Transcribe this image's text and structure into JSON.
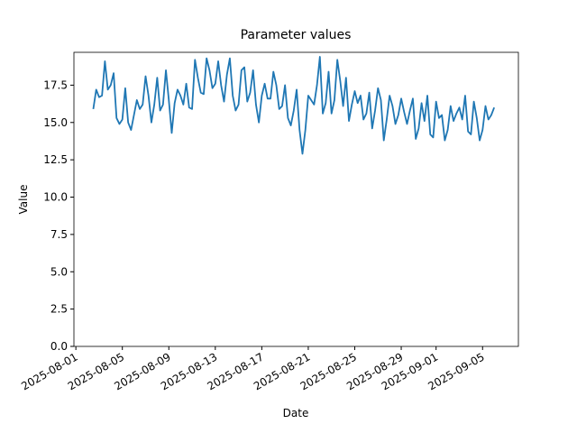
{
  "chart_data": {
    "type": "line",
    "title": "Parameter values",
    "x_label": "Date",
    "y_label": "Value",
    "xlim": [
      "2025-07-31 20:00",
      "2025-09-08 02:00"
    ],
    "xticks": [
      "2025-08-01",
      "2025-08-05",
      "2025-08-09",
      "2025-08-13",
      "2025-08-17",
      "2025-08-21",
      "2025-08-25",
      "2025-08-29",
      "2025-09-01",
      "2025-09-05"
    ],
    "ylim": [
      0,
      19.7
    ],
    "yticks": [
      {
        "value": 0,
        "label": "0.0"
      },
      {
        "value": 2.5,
        "label": "2.5"
      },
      {
        "value": 5,
        "label": "5.0"
      },
      {
        "value": 7.5,
        "label": "7.5"
      },
      {
        "value": 10,
        "label": "10.0"
      },
      {
        "value": 12.5,
        "label": "12.5"
      },
      {
        "value": 15,
        "label": "15.0"
      },
      {
        "value": 17.5,
        "label": "17.5"
      }
    ],
    "x": [
      "2025-08-02 12:00",
      "2025-08-02 18:00",
      "2025-08-03 00:00",
      "2025-08-03 06:00",
      "2025-08-03 12:00",
      "2025-08-03 18:00",
      "2025-08-04 00:00",
      "2025-08-04 06:00",
      "2025-08-04 12:00",
      "2025-08-04 18:00",
      "2025-08-05 00:00",
      "2025-08-05 06:00",
      "2025-08-05 12:00",
      "2025-08-05 18:00",
      "2025-08-06 00:00",
      "2025-08-06 06:00",
      "2025-08-06 12:00",
      "2025-08-06 18:00",
      "2025-08-07 00:00",
      "2025-08-07 06:00",
      "2025-08-07 12:00",
      "2025-08-07 18:00",
      "2025-08-08 00:00",
      "2025-08-08 06:00",
      "2025-08-08 12:00",
      "2025-08-08 18:00",
      "2025-08-09 00:00",
      "2025-08-09 06:00",
      "2025-08-09 12:00",
      "2025-08-09 18:00",
      "2025-08-10 00:00",
      "2025-08-10 06:00",
      "2025-08-10 12:00",
      "2025-08-10 18:00",
      "2025-08-11 00:00",
      "2025-08-11 06:00",
      "2025-08-11 12:00",
      "2025-08-11 18:00",
      "2025-08-12 00:00",
      "2025-08-12 06:00",
      "2025-08-12 12:00",
      "2025-08-12 18:00",
      "2025-08-13 00:00",
      "2025-08-13 06:00",
      "2025-08-13 12:00",
      "2025-08-13 18:00",
      "2025-08-14 00:00",
      "2025-08-14 06:00",
      "2025-08-14 12:00",
      "2025-08-14 18:00",
      "2025-08-15 00:00",
      "2025-08-15 06:00",
      "2025-08-15 12:00",
      "2025-08-15 18:00",
      "2025-08-16 00:00",
      "2025-08-16 06:00",
      "2025-08-16 12:00",
      "2025-08-16 18:00",
      "2025-08-17 00:00",
      "2025-08-17 06:00",
      "2025-08-17 12:00",
      "2025-08-17 18:00",
      "2025-08-18 00:00",
      "2025-08-18 06:00",
      "2025-08-18 12:00",
      "2025-08-18 18:00",
      "2025-08-19 00:00",
      "2025-08-19 06:00",
      "2025-08-19 12:00",
      "2025-08-19 18:00",
      "2025-08-20 00:00",
      "2025-08-20 06:00",
      "2025-08-20 12:00",
      "2025-08-20 18:00",
      "2025-08-21 00:00",
      "2025-08-21 06:00",
      "2025-08-21 12:00",
      "2025-08-21 18:00",
      "2025-08-22 00:00",
      "2025-08-22 06:00",
      "2025-08-22 12:00",
      "2025-08-22 18:00",
      "2025-08-23 00:00",
      "2025-08-23 06:00",
      "2025-08-23 12:00",
      "2025-08-23 18:00",
      "2025-08-24 00:00",
      "2025-08-24 06:00",
      "2025-08-24 12:00",
      "2025-08-24 18:00",
      "2025-08-25 00:00",
      "2025-08-25 06:00",
      "2025-08-25 12:00",
      "2025-08-25 18:00",
      "2025-08-26 00:00",
      "2025-08-26 06:00",
      "2025-08-26 12:00",
      "2025-08-26 18:00",
      "2025-08-27 00:00",
      "2025-08-27 06:00",
      "2025-08-27 12:00",
      "2025-08-27 18:00",
      "2025-08-28 00:00",
      "2025-08-28 06:00",
      "2025-08-28 12:00",
      "2025-08-28 18:00",
      "2025-08-29 00:00",
      "2025-08-29 06:00",
      "2025-08-29 12:00",
      "2025-08-29 18:00",
      "2025-08-30 00:00",
      "2025-08-30 06:00",
      "2025-08-30 12:00",
      "2025-08-30 18:00",
      "2025-08-31 00:00",
      "2025-08-31 06:00",
      "2025-08-31 12:00",
      "2025-08-31 18:00",
      "2025-09-01 00:00",
      "2025-09-01 06:00",
      "2025-09-01 12:00",
      "2025-09-01 18:00",
      "2025-09-02 00:00",
      "2025-09-02 06:00",
      "2025-09-02 12:00",
      "2025-09-02 18:00",
      "2025-09-03 00:00",
      "2025-09-03 06:00",
      "2025-09-03 12:00",
      "2025-09-03 18:00",
      "2025-09-04 00:00",
      "2025-09-04 06:00",
      "2025-09-04 12:00",
      "2025-09-04 18:00",
      "2025-09-05 00:00",
      "2025-09-05 06:00",
      "2025-09-05 12:00",
      "2025-09-05 18:00",
      "2025-09-06 00:00"
    ],
    "series": [
      {
        "color": "#1f77b4",
        "values": [
          15.9,
          17.2,
          16.7,
          16.8,
          19.1,
          17.2,
          17.5,
          18.3,
          15.3,
          14.9,
          15.2,
          17.3,
          15.0,
          14.5,
          15.5,
          16.5,
          15.9,
          16.2,
          18.1,
          16.8,
          15.0,
          16.2,
          18.0,
          15.8,
          16.2,
          18.5,
          16.5,
          14.3,
          16.3,
          17.2,
          16.8,
          16.2,
          17.6,
          16.0,
          15.9,
          19.2,
          18.0,
          17.0,
          16.9,
          19.3,
          18.5,
          17.3,
          17.6,
          19.1,
          17.5,
          16.4,
          18.2,
          19.3,
          16.8,
          15.8,
          16.2,
          18.5,
          18.7,
          16.4,
          17.0,
          18.5,
          16.2,
          15.0,
          16.8,
          17.6,
          16.6,
          16.6,
          18.4,
          17.5,
          15.9,
          16.1,
          17.5,
          15.3,
          14.8,
          15.8,
          17.2,
          14.5,
          12.9,
          14.5,
          16.8,
          16.5,
          16.2,
          17.5,
          19.4,
          15.6,
          16.3,
          18.4,
          15.6,
          16.5,
          19.2,
          17.8,
          16.1,
          18.0,
          15.1,
          16.2,
          17.1,
          16.3,
          16.8,
          15.2,
          15.6,
          17.0,
          14.6,
          15.8,
          17.3,
          16.5,
          13.8,
          15.2,
          16.8,
          16.1,
          14.9,
          15.5,
          16.6,
          15.7,
          14.9,
          15.8,
          16.6,
          13.9,
          14.6,
          16.3,
          15.1,
          16.8,
          14.2,
          14.0,
          16.4,
          15.3,
          15.5,
          13.8,
          14.5,
          16.1,
          15.1,
          15.6,
          16.0,
          15.2,
          16.8,
          14.4,
          14.2,
          16.4,
          15.3,
          13.8,
          14.5,
          16.1,
          15.2,
          15.5,
          16.0
        ]
      }
    ]
  }
}
